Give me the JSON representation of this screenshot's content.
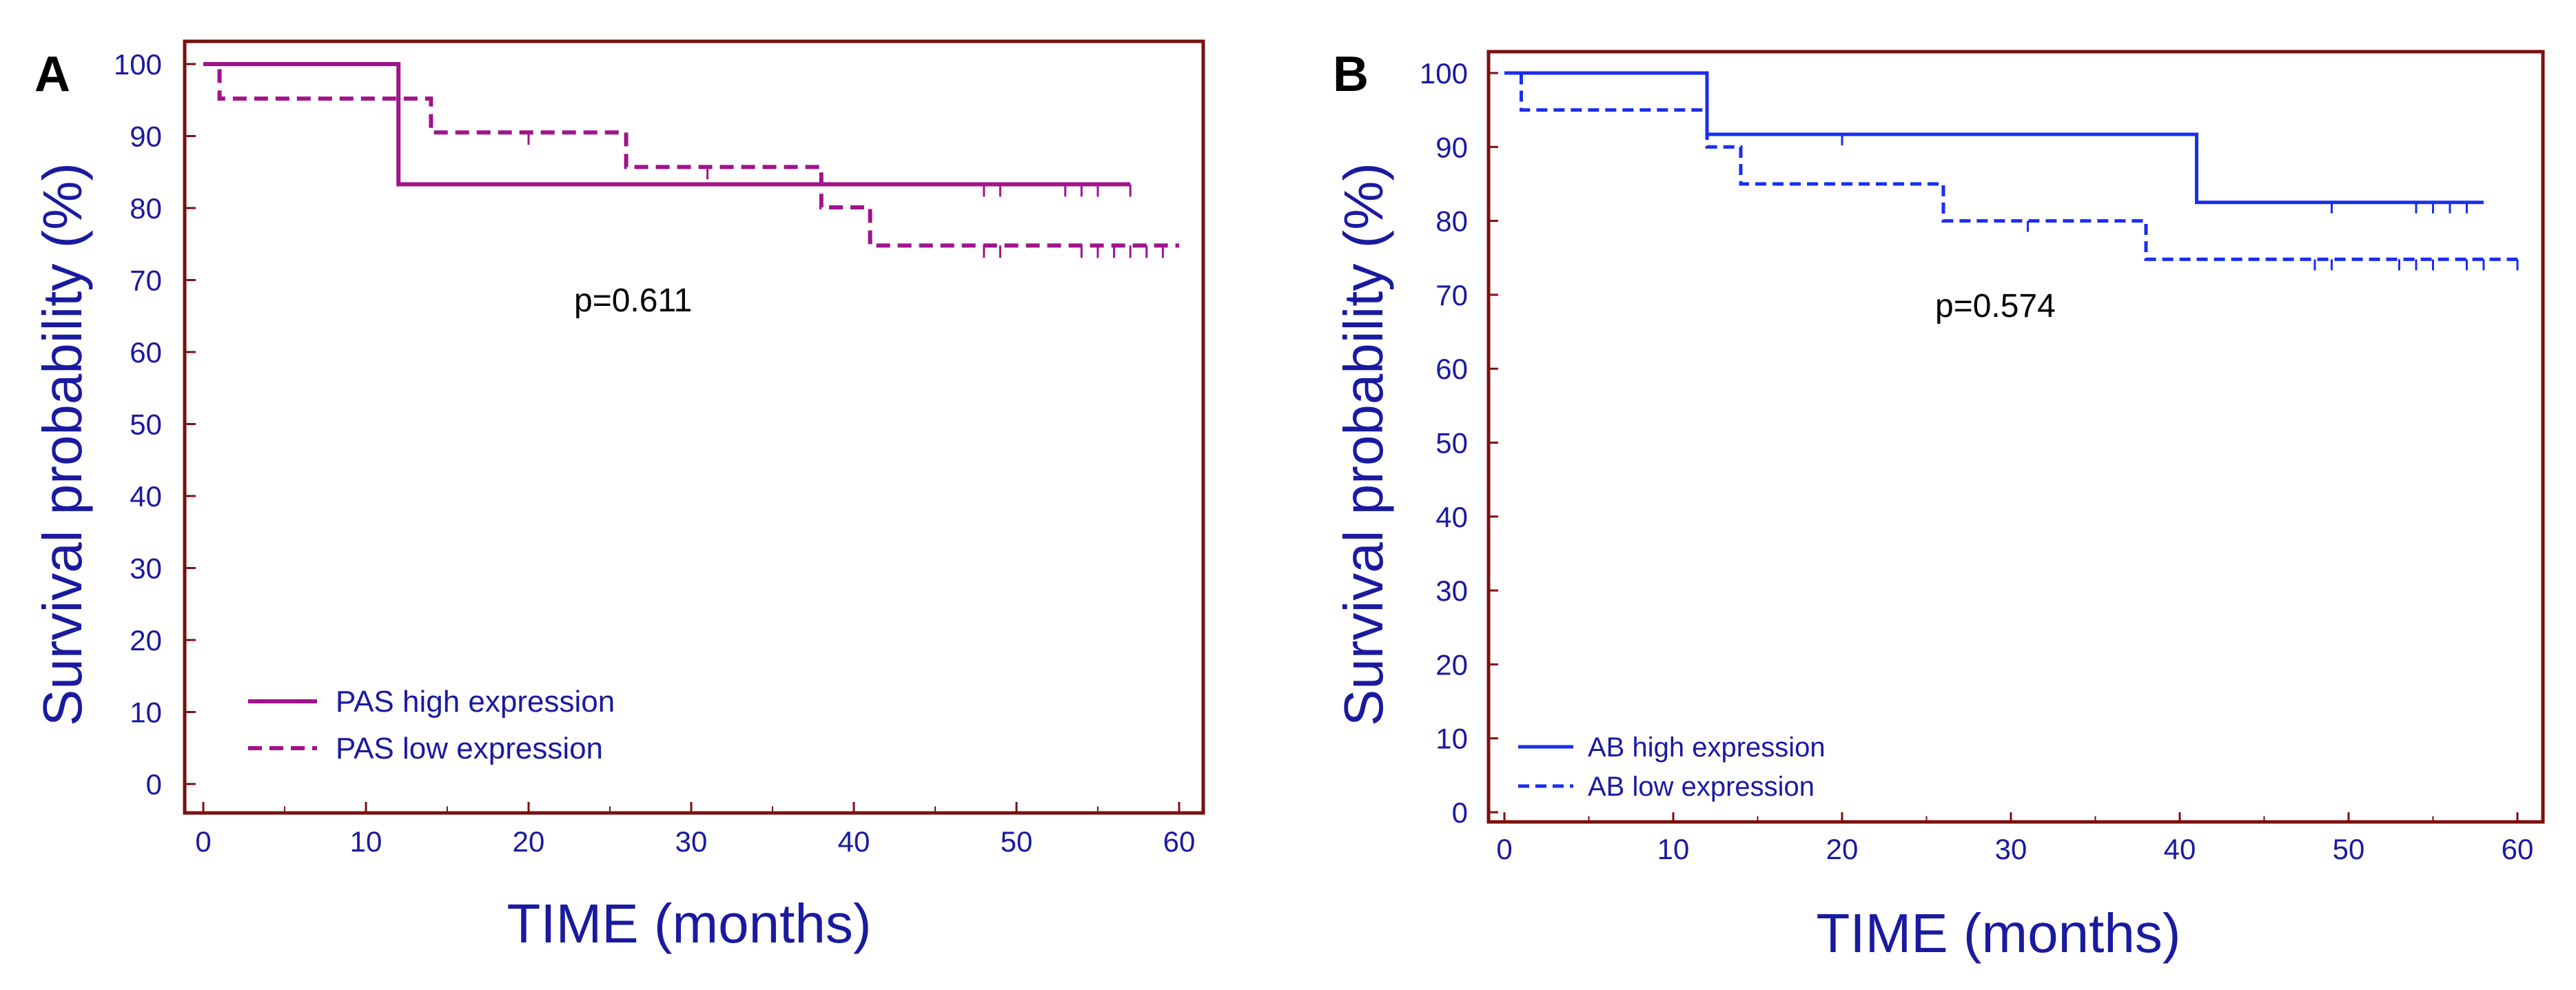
{
  "chart_data": [
    {
      "panel": "A",
      "type": "line",
      "subtype": "kaplan-meier",
      "xlabel": "TIME (months)",
      "ylabel": "Survival probability (%)",
      "xlim": [
        0,
        60
      ],
      "ylim": [
        0,
        100
      ],
      "xticks": [
        0,
        10,
        20,
        30,
        40,
        50,
        60
      ],
      "yticks": [
        0,
        10,
        20,
        30,
        40,
        50,
        60,
        70,
        80,
        90,
        100
      ],
      "annotation": "p=0.611",
      "frame_color": "#7a1010",
      "series": [
        {
          "name": "PAS high expression",
          "style": "solid",
          "color": "#a0148c",
          "steps": [
            [
              0,
              100
            ],
            [
              12,
              83.3
            ],
            [
              57,
              83.3
            ]
          ],
          "censored": [
            48,
            49,
            53,
            54,
            55,
            57
          ]
        },
        {
          "name": "PAS low expression",
          "style": "dashed",
          "color": "#a0148c",
          "steps": [
            [
              0,
              100
            ],
            [
              1,
              95.2
            ],
            [
              14,
              90.5
            ],
            [
              26,
              85.7
            ],
            [
              38,
              80.1
            ],
            [
              41,
              74.8
            ],
            [
              60,
              74.8
            ]
          ],
          "censored": [
            20,
            31,
            48,
            49,
            54,
            55,
            56,
            57,
            58,
            59
          ]
        }
      ]
    },
    {
      "panel": "B",
      "type": "line",
      "subtype": "kaplan-meier",
      "xlabel": "TIME (months)",
      "ylabel": "Survival probability (%)",
      "xlim": [
        0,
        60
      ],
      "ylim": [
        0,
        100
      ],
      "xticks": [
        0,
        10,
        20,
        30,
        40,
        50,
        60
      ],
      "yticks": [
        0,
        10,
        20,
        30,
        40,
        50,
        60,
        70,
        80,
        90,
        100
      ],
      "annotation": "p=0.574",
      "frame_color": "#7a1010",
      "series": [
        {
          "name": "AB high expression",
          "style": "solid",
          "color": "#1a2ef0",
          "steps": [
            [
              0,
              100
            ],
            [
              12,
              91.7
            ],
            [
              41,
              82.5
            ],
            [
              58,
              82.5
            ]
          ],
          "censored": [
            20,
            49,
            54,
            55,
            56,
            57
          ]
        },
        {
          "name": "AB low expression",
          "style": "dashed",
          "color": "#1a2ef0",
          "steps": [
            [
              0,
              100
            ],
            [
              1,
              95
            ],
            [
              12,
              90
            ],
            [
              14,
              85
            ],
            [
              26,
              80
            ],
            [
              38,
              74.8
            ],
            [
              60,
              74.8
            ]
          ],
          "censored": [
            31,
            48,
            49,
            53,
            54,
            55,
            57,
            58,
            60
          ]
        }
      ]
    }
  ]
}
